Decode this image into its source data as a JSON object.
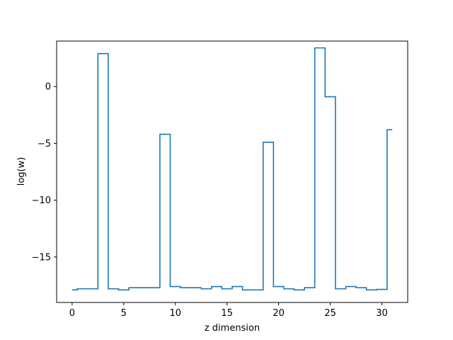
{
  "chart_data": {
    "type": "line",
    "drawstyle": "steps-mid",
    "title": "",
    "xlabel": "z dimension",
    "ylabel": "log(w)",
    "xlim": [
      -1.5,
      32.5
    ],
    "ylim": [
      -19.0,
      4.0
    ],
    "grid": false,
    "line_color": "#1f77b4",
    "x_ticks": [
      0,
      5,
      10,
      15,
      20,
      25,
      30
    ],
    "x_tick_labels": [
      "0",
      "5",
      "10",
      "15",
      "20",
      "25",
      "30"
    ],
    "y_ticks": [
      -15,
      -10,
      -5,
      0
    ],
    "y_tick_labels": [
      "−15",
      "−10",
      "−5",
      "0"
    ],
    "series": [
      {
        "x": [
          0,
          1,
          2,
          3,
          4,
          5,
          6,
          7,
          8,
          9,
          10,
          11,
          12,
          13,
          14,
          15,
          16,
          17,
          18,
          19,
          20,
          21,
          22,
          23,
          24,
          25,
          26,
          27,
          28,
          29,
          30,
          31
        ],
        "values": [
          -17.9,
          -17.8,
          -17.8,
          2.9,
          -17.8,
          -17.9,
          -17.7,
          -17.7,
          -17.7,
          -4.2,
          -17.6,
          -17.7,
          -17.7,
          -17.8,
          -17.6,
          -17.8,
          -17.6,
          -17.9,
          -17.9,
          -4.9,
          -17.6,
          -17.8,
          -17.9,
          -17.7,
          3.4,
          -0.9,
          -17.8,
          -17.6,
          -17.7,
          -17.9,
          -17.85,
          -3.8
        ]
      }
    ]
  }
}
